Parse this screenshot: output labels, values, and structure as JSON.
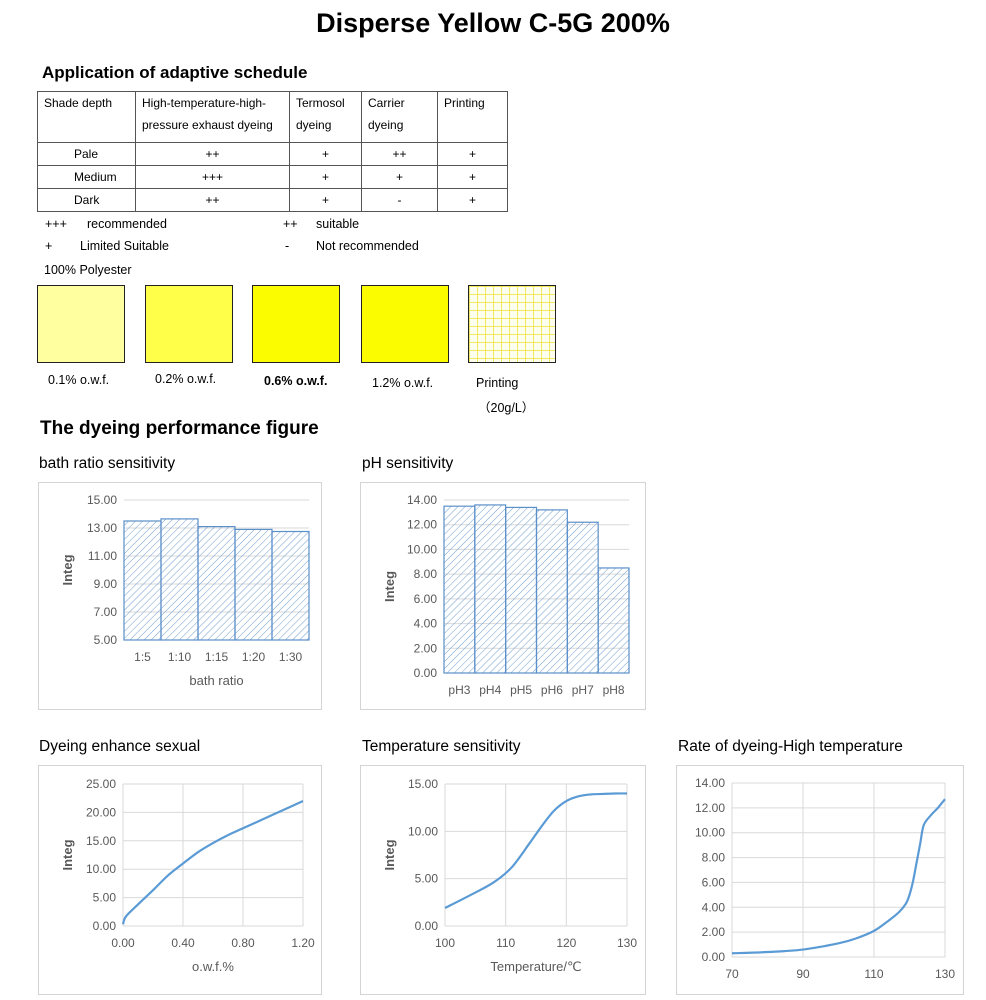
{
  "title": "Disperse Yellow C-5G 200%",
  "schedule": {
    "heading": "Application of adaptive schedule",
    "headers": [
      "Shade depth",
      "High-temperature-high-pressure exhaust dyeing",
      "Termosol dyeing",
      "Carrier dyeing",
      "Printing"
    ],
    "rows": [
      {
        "shade": "Pale",
        "ht": "++",
        "termosol": "+",
        "carrier": "++",
        "printing": "+"
      },
      {
        "shade": "Medium",
        "ht": "+++",
        "termosol": "+",
        "carrier": "+",
        "printing": "+"
      },
      {
        "shade": "Dark",
        "ht": "++",
        "termosol": "+",
        "carrier": "-",
        "printing": "+"
      }
    ],
    "legend": [
      {
        "symbol": "+++",
        "meaning": "recommended"
      },
      {
        "symbol": "++",
        "meaning": "suitable"
      },
      {
        "symbol": "+",
        "meaning": "Limited Suitable"
      },
      {
        "symbol": "-",
        "meaning": "Not recommended"
      }
    ]
  },
  "swatches": {
    "substrate": "100% Polyester",
    "items": [
      {
        "label": "0.1% o.w.f.",
        "color": "#ffffa0"
      },
      {
        "label": "0.2% o.w.f.",
        "color": "#ffff4a"
      },
      {
        "label": "0.6% o.w.f.",
        "color": "#fcfc00"
      },
      {
        "label": "1.2% o.w.f.",
        "color": "#fcfc00"
      },
      {
        "label": "Printing",
        "sublabel": "（20g/L）",
        "color": "#fffff0",
        "grid_color": "#f0e860"
      }
    ]
  },
  "performance_heading": "The dyeing performance figure",
  "chart_data": [
    {
      "type": "bar",
      "title": "bath ratio sensitivity",
      "categories": [
        "1:5",
        "1:10",
        "1:15",
        "1:20",
        "1:30"
      ],
      "values": [
        13.5,
        13.65,
        13.1,
        12.9,
        12.75
      ],
      "xlabel": "bath ratio",
      "ylabel": "Integ",
      "ylim": [
        5,
        15
      ],
      "yticks": [
        "5.00",
        "7.00",
        "9.00",
        "11.00",
        "13.00",
        "15.00"
      ],
      "grid": true
    },
    {
      "type": "bar",
      "title": "pH sensitivity",
      "categories": [
        "pH3",
        "pH4",
        "pH5",
        "pH6",
        "pH7",
        "pH8"
      ],
      "values": [
        13.5,
        13.6,
        13.4,
        13.2,
        12.2,
        8.5
      ],
      "xlabel": "",
      "ylabel": "Integ",
      "ylim": [
        0,
        14
      ],
      "yticks": [
        "0.00",
        "2.00",
        "4.00",
        "6.00",
        "8.00",
        "10.00",
        "12.00",
        "14.00"
      ],
      "grid": true
    },
    {
      "type": "line",
      "title": "Dyeing enhance sexual",
      "x": [
        0,
        0.02,
        0.1,
        0.2,
        0.3,
        0.4,
        0.5,
        0.6,
        0.7,
        0.8,
        0.9,
        1.0,
        1.1,
        1.2
      ],
      "y": [
        0.3,
        1.7,
        3.8,
        6.3,
        8.9,
        11.0,
        13.0,
        14.6,
        16.0,
        17.2,
        18.4,
        19.6,
        20.8,
        22.0
      ],
      "xlabel": "o.w.f.%",
      "ylabel": "Integ",
      "xlim": [
        0,
        1.2
      ],
      "ylim": [
        0,
        25
      ],
      "xticks": [
        "0.00",
        "0.40",
        "0.80",
        "1.20"
      ],
      "yticks": [
        "0.00",
        "5.00",
        "10.00",
        "15.00",
        "20.00",
        "25.00"
      ],
      "grid": true
    },
    {
      "type": "line",
      "title": "Temperature sensitivity",
      "x": [
        100,
        104,
        108,
        111,
        114,
        116,
        118,
        120,
        122,
        124,
        126,
        128,
        130
      ],
      "y": [
        1.9,
        3.2,
        4.6,
        6.2,
        8.8,
        10.6,
        12.2,
        13.2,
        13.7,
        13.9,
        13.95,
        14.0,
        14.0
      ],
      "xlabel": "Temperature/℃",
      "ylabel": "Integ",
      "xlim": [
        100,
        130
      ],
      "ylim": [
        0,
        15
      ],
      "xticks": [
        "100",
        "110",
        "120",
        "130"
      ],
      "yticks": [
        "0.00",
        "5.00",
        "10.00",
        "15.00"
      ],
      "grid": true
    },
    {
      "type": "line",
      "title": "Rate of dyeing-High temperature",
      "x": [
        70,
        80,
        90,
        100,
        105,
        110,
        114,
        117,
        119,
        120,
        121,
        122,
        123,
        124,
        126,
        128,
        130
      ],
      "y": [
        0.3,
        0.4,
        0.6,
        1.1,
        1.5,
        2.1,
        2.9,
        3.6,
        4.3,
        5.0,
        6.1,
        7.6,
        9.1,
        10.6,
        11.4,
        12.0,
        12.7
      ],
      "xlabel": "",
      "ylabel": "",
      "xlim": [
        70,
        130
      ],
      "ylim": [
        0,
        14
      ],
      "xticks": [
        "70",
        "90",
        "110",
        "130"
      ],
      "yticks": [
        "0.00",
        "2.00",
        "4.00",
        "6.00",
        "8.00",
        "10.00",
        "12.00",
        "14.00"
      ],
      "grid": true
    }
  ],
  "colors": {
    "series_line": "#5b9bd5",
    "bar_stroke": "#5b8fc9",
    "bar_hatch": "#6f9fd0",
    "grid": "#d9d9d9",
    "axis_text": "#595959"
  }
}
